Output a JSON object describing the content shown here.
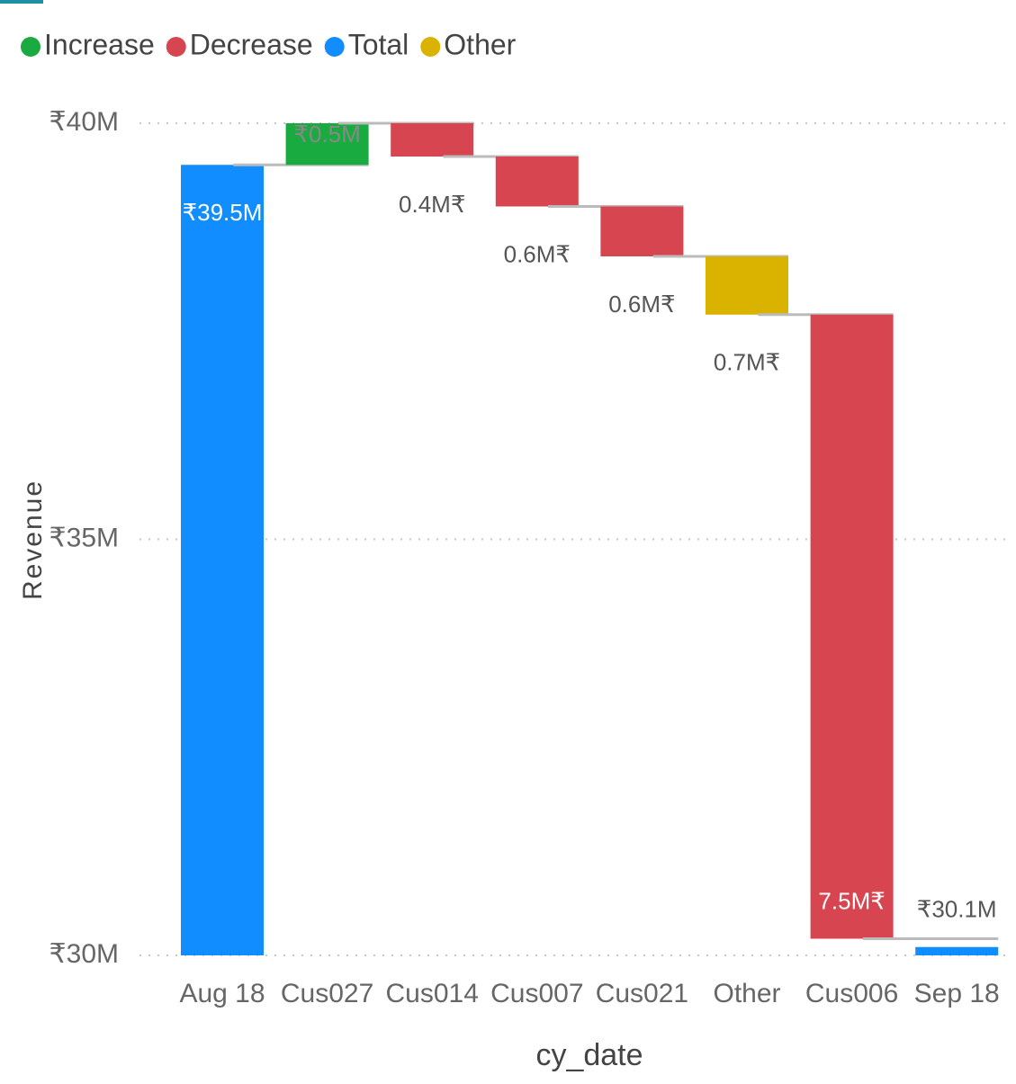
{
  "chart_data": {
    "type": "waterfall",
    "legend": [
      {
        "name": "Increase",
        "color": "#1aab40"
      },
      {
        "name": "Decrease",
        "color": "#d64550"
      },
      {
        "name": "Total",
        "color": "#118dff"
      },
      {
        "name": "Other",
        "color": "#d9b300"
      }
    ],
    "legend_position": "top-left",
    "categories": [
      "Aug 18",
      "Cus027",
      "Cus014",
      "Cus007",
      "Cus021",
      "Other",
      "Cus006",
      "Sep 18"
    ],
    "bar_kinds": [
      "Total",
      "Increase",
      "Decrease",
      "Decrease",
      "Decrease",
      "Other",
      "Decrease",
      "Total"
    ],
    "values": [
      39500000,
      500000,
      -400000,
      -600000,
      -600000,
      -700000,
      -7500000,
      30100000
    ],
    "value_labels": [
      "₹39.5M",
      "₹0.5M",
      "0.4M₹",
      "0.6M₹",
      "0.6M₹",
      "0.7M₹",
      "7.5M₹",
      "₹30.1M"
    ],
    "ylim": [
      30000000,
      40000000
    ],
    "yticks": [
      {
        "value": 30000000,
        "label": "₹30M"
      },
      {
        "value": 35000000,
        "label": "₹35M"
      },
      {
        "value": 40000000,
        "label": "₹40M"
      }
    ],
    "y_label": "Revenue",
    "x_label": "cy_date",
    "grid": true
  }
}
